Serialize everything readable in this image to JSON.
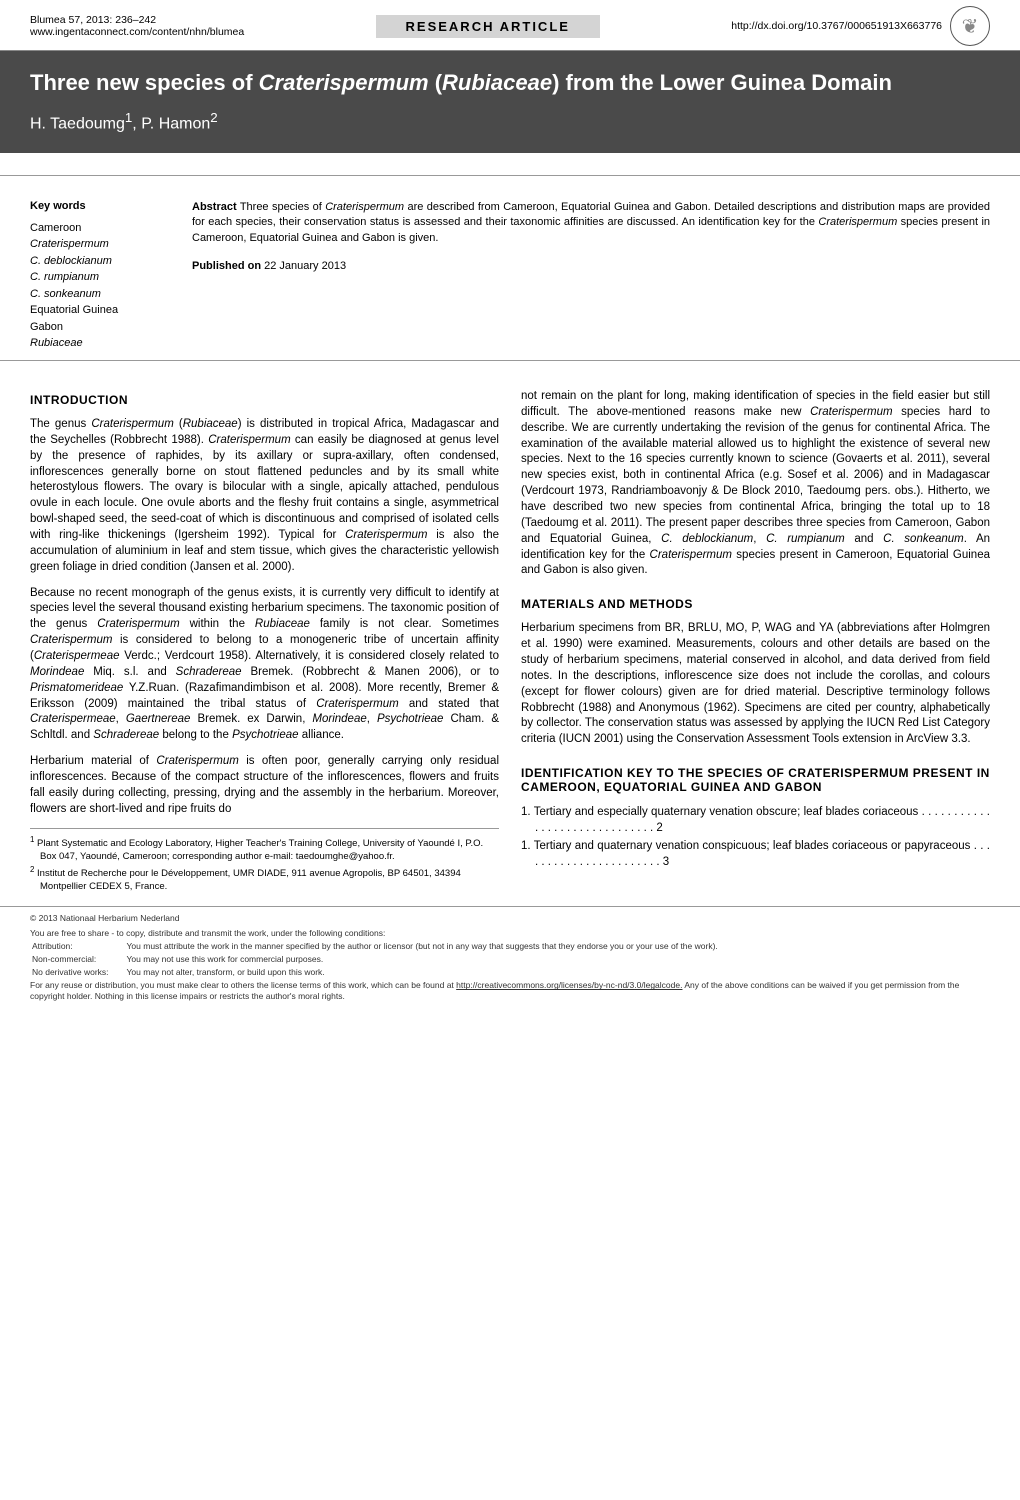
{
  "header": {
    "journal_ref": "Blumea 57, 2013: 236–242",
    "url": "www.ingentaconnect.com/content/nhn/blumea",
    "article_type": "RESEARCH ARTICLE",
    "doi": "http://dx.doi.org/10.3767/000651913X663776",
    "logo": "❦"
  },
  "title_line1": "Three new species of ",
  "title_italic1": "Craterispermum",
  "title_mid": " (",
  "title_italic2": "Rubiaceae",
  "title_end": ") from the Lower Guinea Domain",
  "authors_html": "H. Taedoumg<sup>1</sup>, P. Hamon<sup>2</sup>",
  "keywords_heading": "Key words",
  "keywords": [
    {
      "t": "Cameroon",
      "i": false
    },
    {
      "t": "Craterispermum",
      "i": true
    },
    {
      "t": "C. deblockianum",
      "i": true
    },
    {
      "t": "C. rumpianum",
      "i": true
    },
    {
      "t": "C. sonkeanum",
      "i": true
    },
    {
      "t": "Equatorial Guinea",
      "i": false
    },
    {
      "t": "Gabon",
      "i": false
    },
    {
      "t": "Rubiaceae",
      "i": true
    }
  ],
  "abstract_label": "Abstract",
  "abstract_body": "  Three species of <em>Craterispermum</em> are described from Cameroon, Equatorial Guinea and Gabon. Detailed descriptions and distribution maps are provided for each species, their conservation status is assessed and their taxonomic affinities are discussed. An identification key for the <em>Craterispermum</em> species present in Cameroon, Equatorial Guinea and Gabon is given.",
  "published_label": "Published on",
  "published_date": "  22 January 2013",
  "sections": {
    "introduction": {
      "heading": "INTRODUCTION",
      "para1": "The genus <em>Craterispermum</em> (<em>Rubiaceae</em>) is distributed in tropical Africa, Madagascar and the Seychelles (Robbrecht 1988). <em>Craterispermum</em> can easily be diagnosed at genus level by the presence of raphides, by its axillary or supra-axillary, often condensed, inflorescences generally borne on stout flattened peduncles and by its small white heterostylous flowers. The ovary is bilocular with a single, apically attached, pendulous ovule in each locule. One ovule aborts and the fleshy fruit contains a single, asymmetrical bowl-shaped seed, the seed-coat of which is discontinuous and comprised of isolated cells with ring-like thickenings (Igersheim 1992). Typical for <em>Craterispermum</em> is also the accumulation of aluminium in leaf and stem tissue, which gives the characteristic yellowish green foliage in dried condition (Jansen et al. 2000).",
      "para2": "Because no recent monograph of the genus exists, it is currently very difficult to identify at species level the several thousand existing herbarium specimens. The taxonomic position of the genus <em>Craterispermum</em> within the <em>Rubiaceae</em> family is not clear. Sometimes <em>Craterispermum</em> is considered to belong to a monogeneric tribe of uncertain affinity (<em>Craterispermeae</em> Verdc.; Verdcourt 1958). Alternatively, it is considered closely related to <em>Morindeae</em> Miq. s.l. and <em>Schradereae</em> Bremek. (Robbrecht & Manen 2006), or to <em>Prismatomerideae</em> Y.Z.Ruan. (Razafimandimbison et al. 2008). More recently, Bremer & Eriksson (2009) maintained the tribal status of <em>Craterispermum</em> and stated that <em>Craterispermeae</em>, <em>Gaertnereae</em> Bremek. ex Darwin, <em>Morindeae</em>, <em>Psychotrieae</em> Cham. & Schltdl. and <em>Schradereae</em> belong to the <em>Psychotrieae</em> alliance.",
      "para3": "Herbarium material of <em>Craterispermum</em> is often poor, generally carrying only residual inflorescences. Because of the compact structure of the inflorescences, flowers and fruits fall easily during collecting, pressing, drying and the assembly in the herbarium. Moreover, flowers are short-lived and ripe fruits do",
      "para3_cont": "not remain on the plant for long, making identification of species in the field easier but still difficult. The above-mentioned reasons make new <em>Craterispermum</em> species hard to describe. We are currently undertaking the revision of the genus for continental Africa. The examination of the available material allowed us to highlight the existence of several new species. Next to the 16 species currently known to science (Govaerts et al. 2011), several new species exist, both in continental Africa (e.g. Sosef et al. 2006) and in Madagascar (Verdcourt 1973, Randriamboavonjy & De Block 2010, Taedoumg pers. obs.). Hitherto, we have described two new species from continental Africa, bringing the total up to 18 (Taedoumg et al. 2011). The present paper describes three species from Cameroon, Gabon and Equatorial Guinea, <em>C. deblockianum</em>, <em>C. rumpianum</em> and <em>C. sonkeanum</em>. An identification key for the <em>Craterispermum</em> species present in Cameroon, Equatorial Guinea and Gabon is also given."
    },
    "materials": {
      "heading": "MATERIALS AND METHODS",
      "para1": "Herbarium specimens from BR, BRLU, MO, P, WAG and YA (abbreviations after Holmgren et al. 1990) were examined. Measurements, colours and other details are based on the study of herbarium specimens, material conserved in alcohol, and data derived from field notes. In the descriptions, inflorescence size does not include the corollas, and colours (except for flower colours) given are for dried material. Descriptive terminology follows Robbrecht (1988) and Anonymous (1962). Specimens are cited per country, alphabetically by collector. The conservation status was assessed by applying the IUCN Red List Category criteria (IUCN 2001) using the Conservation Assessment Tools extension in ArcView 3.3."
    },
    "key": {
      "heading": "IDENTIFICATION KEY TO THE SPECIES OF CRATERISPERMUM PRESENT IN CAMEROON, EQUATORIAL GUINEA AND GABON",
      "item1": "1. Tertiary and especially quaternary venation obscure; leaf blades coriaceous . . . . . . . . . . . . . . . . . . . . . . . . . . . . . . 2",
      "item2": "1. Tertiary and quaternary venation conspicuous; leaf blades coriaceous or papyraceous . . . . . . . . . . . . . . . . . . . . . . . 3"
    }
  },
  "footnotes": {
    "fn1": "<sup>1</sup> Plant Systematic and Ecology Laboratory, Higher Teacher's Training College, University of Yaoundé I, P.O. Box 047, Yaoundé, Cameroon; corresponding author e-mail: taedoumghe@yahoo.fr.",
    "fn2": "<sup>2</sup> Institut de Recherche pour le Développement, UMR DIADE, 911 avenue Agropolis, BP 64501, 34394 Montpellier CEDEX 5, France."
  },
  "license": {
    "copyright": "© 2013   Nationaal Herbarium Nederland",
    "intro": "You are free to share - to copy, distribute and transmit the work, under the following conditions:",
    "rows": [
      [
        "Attribution:",
        "You must attribute the work in the manner specified by the author or licensor (but not in any way that suggests that they endorse you or your use of the work)."
      ],
      [
        "Non-commercial:",
        "You may not use this work for commercial purposes."
      ],
      [
        "No derivative works:",
        "You may not alter, transform, or build upon this work."
      ]
    ],
    "tail": "For any reuse or distribution, you must make clear to others the license terms of this work, which can be found at <u>http://creativecommons.org/licenses/by-nc-nd/3.0/legalcode.</u> Any of the above conditions can be waived if you get permission from the copyright holder. Nothing in this license impairs or restricts the author's moral rights."
  },
  "colors": {
    "title_bg": "#4a4a4a",
    "badge_bg": "#d4d4d4",
    "rule": "#999999"
  }
}
